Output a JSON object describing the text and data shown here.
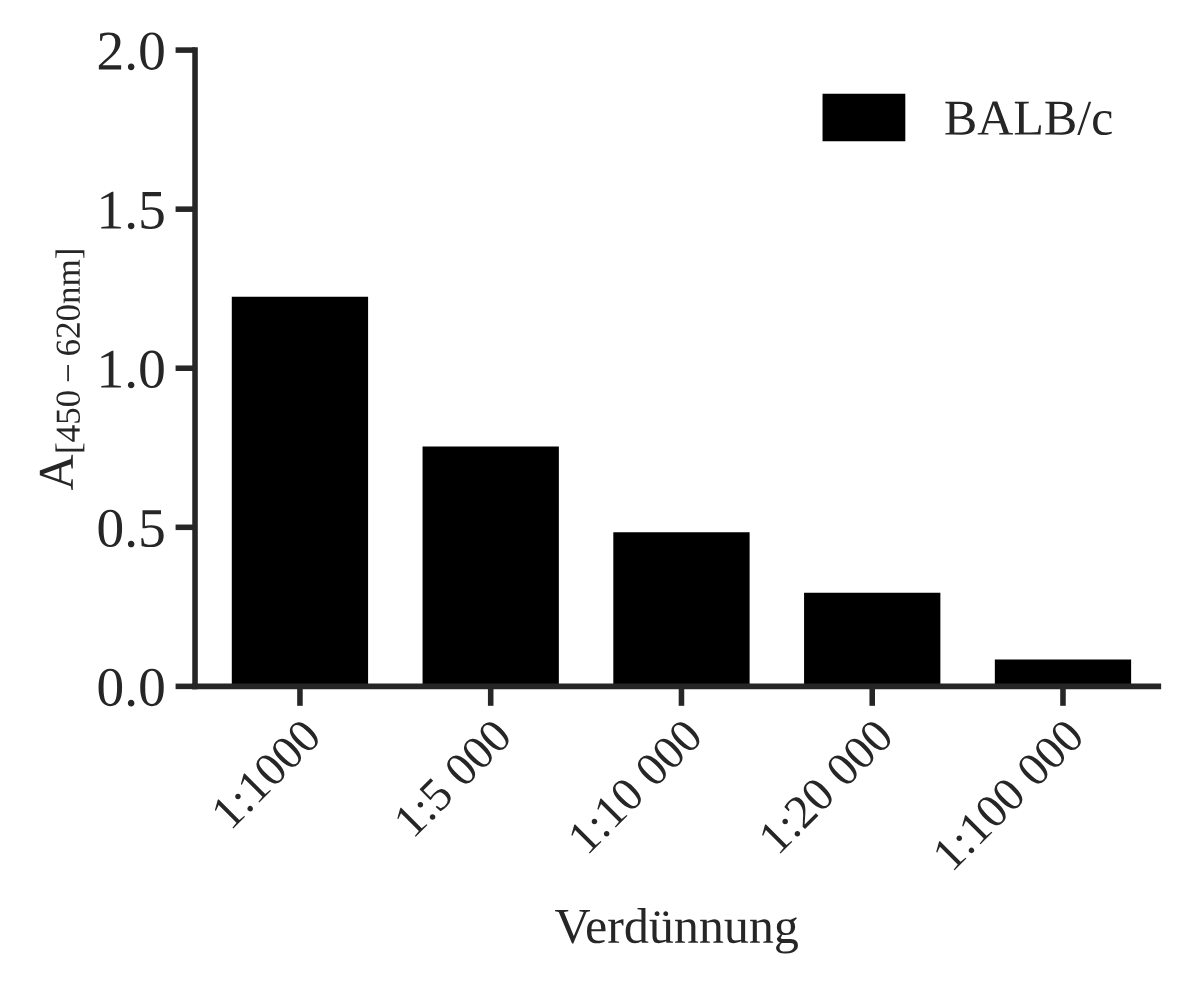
{
  "chart_data": {
    "type": "bar",
    "xlabel": "Verdünnung",
    "ylabel": "A$_{[450−620nm]}$",
    "categories": [
      "1:1000",
      "1:5 000",
      "1:10 000",
      "1:20 000",
      "1:100 000"
    ],
    "series": [
      {
        "name": "BALB/c",
        "color": "#000000",
        "values": [
          1.22,
          0.75,
          0.48,
          0.29,
          0.08
        ]
      }
    ],
    "ylim": [
      0,
      2.0
    ],
    "yticks": [
      {
        "value": 0,
        "label": "0.0"
      },
      {
        "value": 0.5,
        "label": "0.5"
      },
      {
        "value": 1.0,
        "label": "1.0"
      },
      {
        "value": 1.5,
        "label": "1.5"
      },
      {
        "value": 2.0,
        "label": "2.0"
      }
    ],
    "grid": false,
    "legend": "top right"
  }
}
